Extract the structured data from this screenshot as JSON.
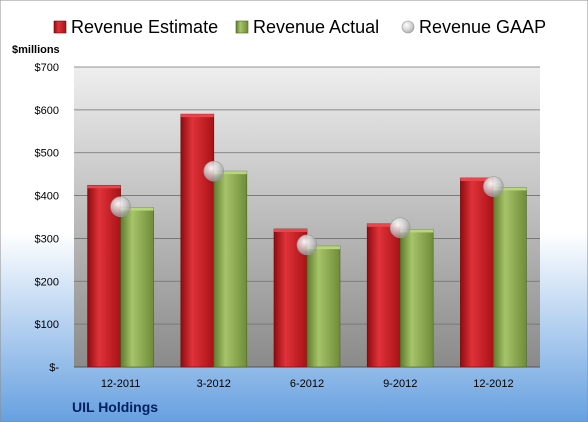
{
  "chart_data": {
    "type": "bar",
    "company": "UIL Holdings",
    "unit_label": "$millions",
    "categories": [
      "12-2011",
      "3-2012",
      "6-2012",
      "9-2012",
      "12-2012"
    ],
    "series": [
      {
        "name": "Revenue Estimate",
        "kind": "bar",
        "color": "#c8181e",
        "values": [
          424,
          590,
          322,
          334,
          441
        ]
      },
      {
        "name": "Revenue Actual",
        "kind": "bar",
        "color": "#8aa84c",
        "values": [
          372,
          457,
          282,
          321,
          419
        ]
      },
      {
        "name": "Revenue GAAP",
        "kind": "marker",
        "color": "#c9c9c9",
        "values": [
          374,
          457,
          285,
          325,
          421
        ]
      }
    ],
    "ylim": [
      0,
      700
    ],
    "yticks": [
      0,
      100,
      200,
      300,
      400,
      500,
      600,
      700
    ],
    "ytick_labels": [
      "$-",
      "$100",
      "$200",
      "$300",
      "$400",
      "$500",
      "$600",
      "$700"
    ],
    "grid": true,
    "legend_position": "top"
  },
  "colors": {
    "background_top": "#ffffff",
    "background_bottom": "#66a0e0",
    "plot_top": "#eeeeee",
    "plot_bottom": "#8a8a8a",
    "estimate": "#c8181e",
    "actual": "#8aa84c",
    "gaap": "#c9c9c9"
  }
}
